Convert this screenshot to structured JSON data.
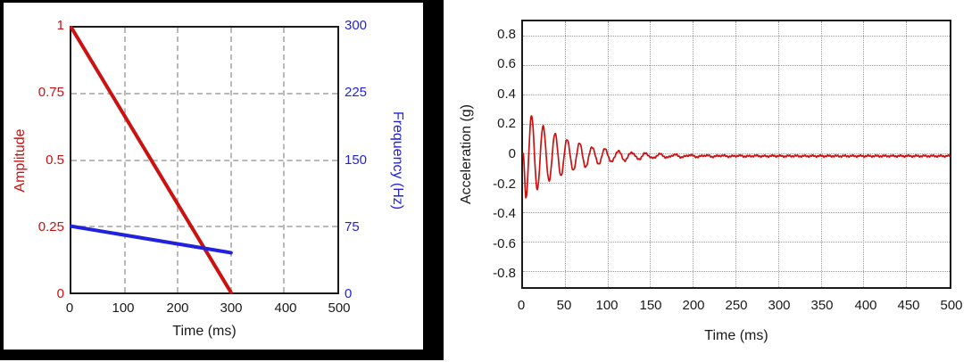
{
  "colors": {
    "red_series": "#cc1111",
    "blue_series": "#2222dd",
    "axis_frame": "#1a1a1a",
    "figure_frame": "#000000",
    "grid_left_chart": "#b9b9b9",
    "grid_right_chart": "#9c9c9c",
    "background": "#ffffff"
  },
  "chart_data": [
    {
      "id": "sweep-profile",
      "type": "line",
      "title": "",
      "xlabel": "Time (ms)",
      "xlim": [
        0,
        500
      ],
      "x_ticks": [
        "0",
        "100",
        "200",
        "300",
        "400",
        "500"
      ],
      "grid": {
        "style": "dashed",
        "on": true
      },
      "frame": {
        "present": true,
        "color": "#000000"
      },
      "left_axis": {
        "label": "Amplitude",
        "color": "#cc1111",
        "lim": [
          0,
          1
        ],
        "ticks": [
          "1",
          "0.75",
          "0.5",
          "0.25",
          "0"
        ]
      },
      "right_axis": {
        "label": "Frequency (Hz)",
        "color": "#2222dd",
        "lim": [
          0,
          300
        ],
        "ticks": [
          "300",
          "225",
          "150",
          "75",
          "0"
        ]
      },
      "series": [
        {
          "name": "Amplitude",
          "axis": "left",
          "color": "#cc1111",
          "points": [
            [
              0,
              1
            ],
            [
              300,
              0
            ]
          ]
        },
        {
          "name": "Frequency (Hz)",
          "axis": "right",
          "color": "#2222dd",
          "points": [
            [
              0,
              75
            ],
            [
              300,
              45
            ]
          ]
        }
      ]
    },
    {
      "id": "acceleration-response",
      "type": "line",
      "title": "",
      "xlabel": "Time (ms)",
      "ylabel": "Acceleration (g)",
      "xlim": [
        0,
        500
      ],
      "ylim": [
        -0.9,
        0.9
      ],
      "x_ticks": [
        "0",
        "50",
        "100",
        "150",
        "200",
        "250",
        "300",
        "350",
        "400",
        "450",
        "500"
      ],
      "y_ticks": [
        "0.8",
        "0.6",
        "0.4",
        "0.2",
        "0",
        "-0.2",
        "-0.4",
        "-0.6",
        "-0.8"
      ],
      "grid": {
        "style": "dotted",
        "on": true
      },
      "series": [
        {
          "name": "Acceleration",
          "color": "#cc1111",
          "signal_model": {
            "description": "decaying swept-sine response, noisy tail",
            "f0_hz": 75,
            "f1_hz": 45,
            "sweep_end_ms": 300,
            "initial_amplitude_g": 0.32,
            "decay_time_constant_ms": 50,
            "baseline_g": -0.012,
            "noise_g": 0.008,
            "max_peak_g": 0.26,
            "min_peak_g": -0.29
          }
        }
      ]
    }
  ]
}
